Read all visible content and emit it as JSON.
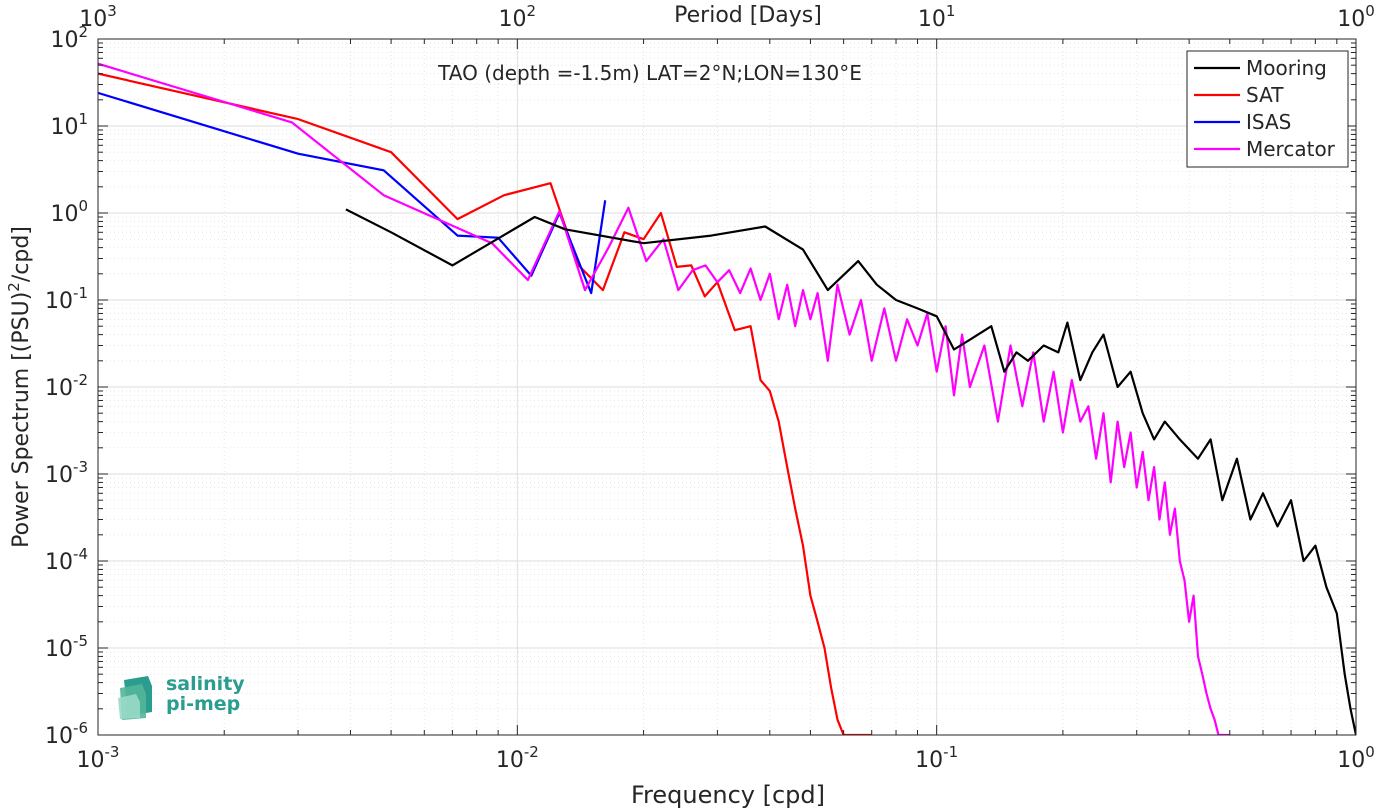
{
  "chart_data": {
    "type": "line",
    "title": "TAO (depth =-1.5m) LAT=2°N;LON=130°E",
    "xlabel": "Frequency [cpd]",
    "ylabel": "Power Spectrum [(PSU)^2/cpd]",
    "top_axis_label": "Period [Days]",
    "x_scale": "log",
    "y_scale": "log",
    "xlim": [
      0.001,
      1
    ],
    "ylim": [
      1e-06,
      100
    ],
    "grid": true,
    "legend_position": "top-right",
    "x_ticks": [
      {
        "base": "10",
        "exp": "-3"
      },
      {
        "base": "10",
        "exp": "-2"
      },
      {
        "base": "10",
        "exp": "-1"
      },
      {
        "base": "10",
        "exp": "0"
      }
    ],
    "top_ticks": [
      {
        "base": "10",
        "exp": "3"
      },
      {
        "base": "10",
        "exp": "2"
      },
      {
        "base": "10",
        "exp": "1"
      },
      {
        "base": "10",
        "exp": "0"
      }
    ],
    "y_ticks": [
      {
        "base": "10",
        "exp": "-6"
      },
      {
        "base": "10",
        "exp": "-5"
      },
      {
        "base": "10",
        "exp": "-4"
      },
      {
        "base": "10",
        "exp": "-3"
      },
      {
        "base": "10",
        "exp": "-2"
      },
      {
        "base": "10",
        "exp": "-1"
      },
      {
        "base": "10",
        "exp": "0"
      },
      {
        "base": "10",
        "exp": "1"
      },
      {
        "base": "10",
        "exp": "2"
      }
    ],
    "series": [
      {
        "name": "Mooring",
        "color": "#000000",
        "x": [
          0.0039,
          0.005,
          0.007,
          0.011,
          0.013,
          0.02,
          0.029,
          0.039,
          0.048,
          0.055,
          0.065,
          0.072,
          0.08,
          0.09,
          0.1,
          0.11,
          0.12,
          0.135,
          0.145,
          0.155,
          0.165,
          0.18,
          0.195,
          0.205,
          0.22,
          0.235,
          0.25,
          0.27,
          0.29,
          0.31,
          0.33,
          0.35,
          0.38,
          0.42,
          0.45,
          0.48,
          0.52,
          0.56,
          0.6,
          0.65,
          0.7,
          0.75,
          0.8,
          0.85,
          0.9,
          0.94,
          0.97,
          1.0
        ],
        "y": [
          1.1,
          0.6,
          0.25,
          0.9,
          0.65,
          0.45,
          0.55,
          0.7,
          0.38,
          0.13,
          0.28,
          0.15,
          0.1,
          0.08,
          0.065,
          0.027,
          0.035,
          0.05,
          0.015,
          0.025,
          0.02,
          0.03,
          0.025,
          0.055,
          0.012,
          0.025,
          0.04,
          0.01,
          0.015,
          0.005,
          0.0025,
          0.004,
          0.0025,
          0.0015,
          0.0025,
          0.0005,
          0.0015,
          0.0003,
          0.0006,
          0.00025,
          0.0005,
          0.0001,
          0.00015,
          5e-05,
          2.5e-05,
          5e-06,
          2e-06,
          1e-06
        ]
      },
      {
        "name": "SAT",
        "color": "#ff0000",
        "x": [
          0.001,
          0.003,
          0.005,
          0.0072,
          0.0093,
          0.012,
          0.014,
          0.016,
          0.018,
          0.02,
          0.022,
          0.024,
          0.026,
          0.028,
          0.03,
          0.033,
          0.036,
          0.038,
          0.04,
          0.042,
          0.044,
          0.046,
          0.048,
          0.05,
          0.052,
          0.054,
          0.056,
          0.058,
          0.06,
          0.062,
          0.065,
          0.068,
          0.07
        ],
        "y": [
          40,
          12,
          5,
          0.85,
          1.6,
          2.2,
          0.25,
          0.13,
          0.6,
          0.5,
          1.0,
          0.24,
          0.25,
          0.11,
          0.16,
          0.045,
          0.05,
          0.012,
          0.009,
          0.004,
          0.0012,
          0.0004,
          0.00015,
          4e-05,
          2e-05,
          1e-05,
          3.5e-06,
          1.5e-06,
          1e-06,
          1e-06,
          1e-06,
          1e-06,
          1e-06
        ]
      },
      {
        "name": "ISAS",
        "color": "#0000ff",
        "x": [
          0.001,
          0.003,
          0.0048,
          0.0072,
          0.009,
          0.0108,
          0.0126,
          0.015,
          0.0162
        ],
        "y": [
          24,
          4.8,
          3.1,
          0.55,
          0.52,
          0.19,
          1.0,
          0.12,
          1.4
        ]
      },
      {
        "name": "Mercator",
        "color": "#ff00ff",
        "x": [
          0.001,
          0.0029,
          0.0048,
          0.0087,
          0.0106,
          0.0126,
          0.0145,
          0.0165,
          0.0184,
          0.0203,
          0.0223,
          0.0242,
          0.0262,
          0.0281,
          0.03,
          0.032,
          0.034,
          0.036,
          0.038,
          0.04,
          0.042,
          0.044,
          0.046,
          0.048,
          0.05,
          0.052,
          0.055,
          0.058,
          0.062,
          0.066,
          0.07,
          0.075,
          0.08,
          0.085,
          0.09,
          0.095,
          0.1,
          0.105,
          0.11,
          0.115,
          0.12,
          0.13,
          0.14,
          0.15,
          0.16,
          0.17,
          0.18,
          0.19,
          0.2,
          0.21,
          0.22,
          0.23,
          0.24,
          0.25,
          0.26,
          0.27,
          0.28,
          0.29,
          0.3,
          0.31,
          0.32,
          0.33,
          0.34,
          0.35,
          0.36,
          0.37,
          0.38,
          0.39,
          0.4,
          0.41,
          0.42,
          0.43,
          0.44,
          0.45,
          0.46,
          0.47,
          0.48,
          0.49,
          0.495,
          0.5
        ],
        "y": [
          52,
          11,
          1.6,
          0.45,
          0.17,
          1.05,
          0.13,
          0.4,
          1.15,
          0.28,
          0.5,
          0.13,
          0.22,
          0.25,
          0.16,
          0.22,
          0.12,
          0.23,
          0.1,
          0.2,
          0.06,
          0.15,
          0.05,
          0.13,
          0.06,
          0.12,
          0.02,
          0.15,
          0.04,
          0.1,
          0.02,
          0.08,
          0.02,
          0.06,
          0.03,
          0.07,
          0.015,
          0.05,
          0.008,
          0.04,
          0.01,
          0.03,
          0.004,
          0.03,
          0.006,
          0.025,
          0.004,
          0.015,
          0.003,
          0.012,
          0.004,
          0.006,
          0.0015,
          0.005,
          0.0008,
          0.004,
          0.0012,
          0.003,
          0.0007,
          0.0018,
          0.0005,
          0.0012,
          0.0003,
          0.0008,
          0.0002,
          0.0004,
          0.0001,
          6e-05,
          2e-05,
          4e-05,
          8e-06,
          5e-06,
          3e-06,
          2e-06,
          1.5e-06,
          1e-06,
          1e-06,
          1e-06,
          1e-06,
          1e-06
        ]
      }
    ]
  },
  "logo": {
    "line1": "salinity",
    "line2": "pi-mep"
  }
}
